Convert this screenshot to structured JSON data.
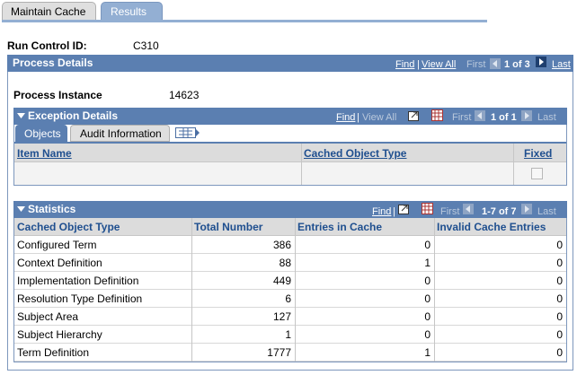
{
  "tabs": [
    "Maintain Cache",
    "Results"
  ],
  "run_control": {
    "label": "Run Control ID:",
    "value": "C310"
  },
  "process_details": {
    "title": "Process Details",
    "nav": {
      "find": "Find",
      "view_all": "View All",
      "first": "First",
      "count": "1 of 3",
      "last": "Last"
    },
    "process_instance": {
      "label": "Process Instance",
      "value": "14623"
    }
  },
  "exception_details": {
    "title": "Exception Details",
    "nav": {
      "find": "Find",
      "view_all": "View All",
      "first": "First",
      "count": "1 of 1",
      "last": "Last"
    },
    "tabs": [
      "Objects",
      "Audit Information"
    ],
    "columns": [
      "Item Name",
      "Cached Object Type",
      "Fixed"
    ]
  },
  "statistics": {
    "title": "Statistics",
    "nav": {
      "find": "Find",
      "first": "First",
      "count": "1-7 of 7",
      "last": "Last"
    },
    "columns": [
      "Cached Object Type",
      "Total Number",
      "Entries in Cache",
      "Invalid Cache Entries"
    ],
    "rows": [
      [
        "Configured Term",
        386,
        0,
        0
      ],
      [
        "Context Definition",
        88,
        1,
        0
      ],
      [
        "Implementation Definition",
        449,
        0,
        0
      ],
      [
        "Resolution Type Definition",
        6,
        0,
        0
      ],
      [
        "Subject Area",
        127,
        0,
        0
      ],
      [
        "Subject Hierarchy",
        1,
        0,
        0
      ],
      [
        "Term Definition",
        1777,
        1,
        0
      ]
    ]
  }
}
